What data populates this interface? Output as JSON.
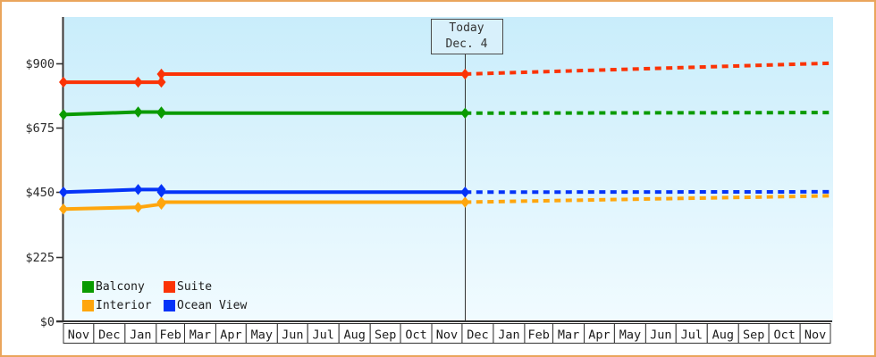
{
  "colors": {
    "frame_border": "#eaa55c",
    "plot_bg_top": "#c9edfb",
    "plot_bg_bottom": "#f1fbff",
    "axis": "#333333",
    "month_cell_bg": "#ffffff",
    "today_line": "#333333"
  },
  "chart_data": {
    "type": "line",
    "title": "",
    "description": "Cruise cabin price history with dotted future price projection per cabin category",
    "y_axis": {
      "tick_values": [
        0,
        225,
        450,
        675,
        900
      ],
      "tick_labels": [
        "$0",
        "$225",
        "$450",
        "$675",
        "$900"
      ],
      "range": [
        0,
        1060
      ],
      "grid": false
    },
    "x_axis": {
      "unit": "months",
      "labels": [
        "Nov",
        "Dec",
        "Jan",
        "Feb",
        "Mar",
        "Apr",
        "May",
        "Jun",
        "Jul",
        "Aug",
        "Sep",
        "Oct",
        "Nov",
        "Dec",
        "Jan",
        "Feb",
        "Mar",
        "Apr",
        "May",
        "Jun",
        "Jul",
        "Aug",
        "Sep",
        "Oct",
        "Nov"
      ],
      "month_day_counts": [
        30,
        31,
        31,
        28,
        31,
        30,
        31,
        30,
        31,
        31,
        30,
        31,
        30,
        31,
        31,
        28,
        31,
        30,
        31,
        30,
        31,
        31,
        30,
        31,
        30
      ],
      "total_days": 760
    },
    "today": {
      "label": "Today",
      "date": "Dec. 4",
      "day_offset": 398
    },
    "legend_position": "bottom-left-inside",
    "series": [
      {
        "name": "Balcony",
        "color": "#0a9b00",
        "history": [
          [
            0,
            720
          ],
          [
            74,
            729
          ],
          [
            97,
            729
          ],
          [
            97,
            725
          ],
          [
            398,
            725
          ]
        ],
        "projection": [
          [
            398,
            725
          ],
          [
            760,
            727
          ]
        ]
      },
      {
        "name": "Suite",
        "color": "#fb3305",
        "history": [
          [
            0,
            833
          ],
          [
            74,
            833
          ],
          [
            97,
            833
          ],
          [
            97,
            861
          ],
          [
            398,
            861
          ]
        ],
        "projection": [
          [
            398,
            861
          ],
          [
            760,
            899
          ]
        ]
      },
      {
        "name": "Interior",
        "color": "#ffa60d",
        "history": [
          [
            0,
            391
          ],
          [
            74,
            397
          ],
          [
            97,
            408
          ],
          [
            97,
            415
          ],
          [
            398,
            415
          ]
        ],
        "projection": [
          [
            398,
            415
          ],
          [
            760,
            437
          ]
        ]
      },
      {
        "name": "Ocean View",
        "color": "#0433f8",
        "history": [
          [
            0,
            450
          ],
          [
            74,
            459
          ],
          [
            97,
            459
          ],
          [
            97,
            450
          ],
          [
            398,
            450
          ]
        ],
        "projection": [
          [
            398,
            450
          ],
          [
            760,
            451
          ]
        ]
      }
    ]
  }
}
